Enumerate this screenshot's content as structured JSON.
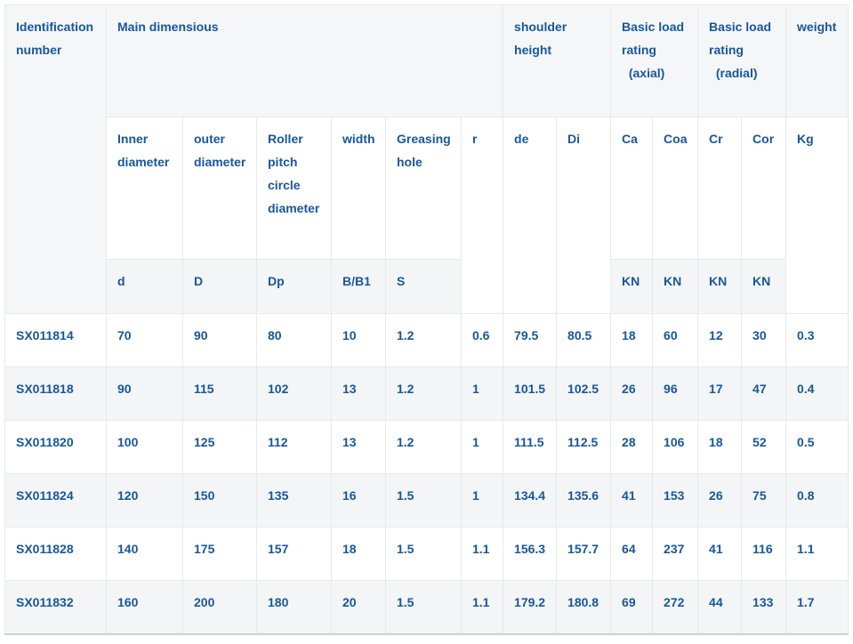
{
  "colors": {
    "text_blue": "#17579c",
    "grid_border": "#e7e9eb",
    "header_row1_bg": "#f5f6f8",
    "id_header_bg": "#f0f2f4",
    "subheader_bg": "#f4f5f6",
    "stripe_bg": "#f4f5f6"
  },
  "header": {
    "identification": "Identification\nnumber",
    "main_dimensions": "Main dimensious",
    "shoulder_height": "shoulder\nheight",
    "basic_load_axial": "Basic load\nrating\n  (axial)",
    "basic_load_radial": "Basic load\nrating\n  (radial)",
    "weight": "weight",
    "sub": {
      "inner_diameter": "Inner\ndiameter",
      "outer_diameter": "outer\ndiameter",
      "roller_pitch_circle_diameter": "Roller\npitch\ncircle\ndiameter",
      "width": "width",
      "greasing_hole": "Greasing\nhole",
      "r": "r",
      "de": "de",
      "di": "Di",
      "ca": "Ca",
      "coa": "Coa",
      "cr": "Cr",
      "cor": "Cor",
      "kg": "Kg"
    },
    "units": {
      "d": "d",
      "d_cap": "D",
      "dp": "Dp",
      "b_b1": "B/B1",
      "s": "S",
      "kn_ca": "KN",
      "kn_coa": "KN",
      "kn_cr": "KN",
      "kn_cor": "KN"
    }
  },
  "columns": [
    "inner-diameter-d",
    "outer-diameter-D",
    "roller-pitch-circle-diameter-Dp",
    "width-B-B1",
    "greasing-hole-S",
    "chamfer-r",
    "shoulder-height-de",
    "shoulder-height-Di",
    "axial-load-Ca",
    "axial-load-Coa",
    "radial-load-Cr",
    "radial-load-Cor",
    "weight-Kg"
  ],
  "rows": [
    {
      "id": "SX011814",
      "values": [
        "70",
        "90",
        "80",
        "10",
        "1.2",
        "0.6",
        "79.5",
        "80.5",
        "18",
        "60",
        "12",
        "30",
        "0.3"
      ]
    },
    {
      "id": "SX011818",
      "values": [
        "90",
        "115",
        "102",
        "13",
        "1.2",
        "1",
        "101.5",
        "102.5",
        "26",
        "96",
        "17",
        "47",
        "0.4"
      ]
    },
    {
      "id": "SX011820",
      "values": [
        "100",
        "125",
        "112",
        "13",
        "1.2",
        "1",
        "111.5",
        "112.5",
        "28",
        "106",
        "18",
        "52",
        "0.5"
      ]
    },
    {
      "id": "SX011824",
      "values": [
        "120",
        "150",
        "135",
        "16",
        "1.5",
        "1",
        "134.4",
        "135.6",
        "41",
        "153",
        "26",
        "75",
        "0.8"
      ]
    },
    {
      "id": "SX011828",
      "values": [
        "140",
        "175",
        "157",
        "18",
        "1.5",
        "1.1",
        "156.3",
        "157.7",
        "64",
        "237",
        "41",
        "116",
        "1.1"
      ]
    },
    {
      "id": "SX011832",
      "values": [
        "160",
        "200",
        "180",
        "20",
        "1.5",
        "1.1",
        "179.2",
        "180.8",
        "69",
        "272",
        "44",
        "133",
        "1.7"
      ]
    }
  ]
}
